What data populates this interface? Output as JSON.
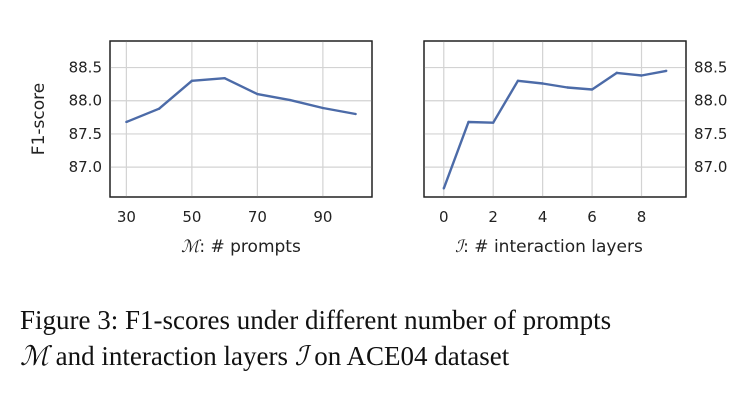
{
  "chart_data": [
    {
      "type": "line",
      "xlabel_symbol": "ℳ",
      "xlabel": ": # prompts",
      "ylabel": "F1-score",
      "xlim": [
        25,
        105
      ],
      "ylim": [
        86.55,
        88.9
      ],
      "xticks": [
        30,
        50,
        70,
        90
      ],
      "yticks": [
        87.0,
        87.5,
        88.0,
        88.5
      ],
      "ytick_labels": [
        "87.0",
        "87.5",
        "88.0",
        "88.5"
      ],
      "grid": true,
      "color": "#4c6ba8",
      "x": [
        30,
        40,
        50,
        60,
        70,
        80,
        90,
        100
      ],
      "y": [
        87.68,
        87.88,
        88.3,
        88.34,
        88.1,
        88.01,
        87.89,
        87.8
      ]
    },
    {
      "type": "line",
      "xlabel_symbol": "ℐ",
      "xlabel": ": # interaction layers",
      "ylabel": "",
      "xlim": [
        -0.8,
        9.8
      ],
      "ylim": [
        86.55,
        88.9
      ],
      "xticks": [
        0,
        2,
        4,
        6,
        8
      ],
      "yticks": [
        87.0,
        87.5,
        88.0,
        88.5
      ],
      "ytick_labels": [
        "87.0",
        "87.5",
        "88.0",
        "88.5"
      ],
      "grid": true,
      "color": "#4c6ba8",
      "x": [
        0,
        1,
        2,
        3,
        4,
        5,
        6,
        7,
        8,
        9
      ],
      "y": [
        86.68,
        87.68,
        87.67,
        88.3,
        88.26,
        88.2,
        88.17,
        88.42,
        88.38,
        88.45
      ]
    }
  ],
  "caption": {
    "line1": "Figure 3: F1-scores under different number of prompts",
    "line2_sym1": "ℳ",
    "line2_mid": " and interaction layers ",
    "line2_sym2": "ℐ",
    "line2_end": " on ACE04 dataset"
  }
}
